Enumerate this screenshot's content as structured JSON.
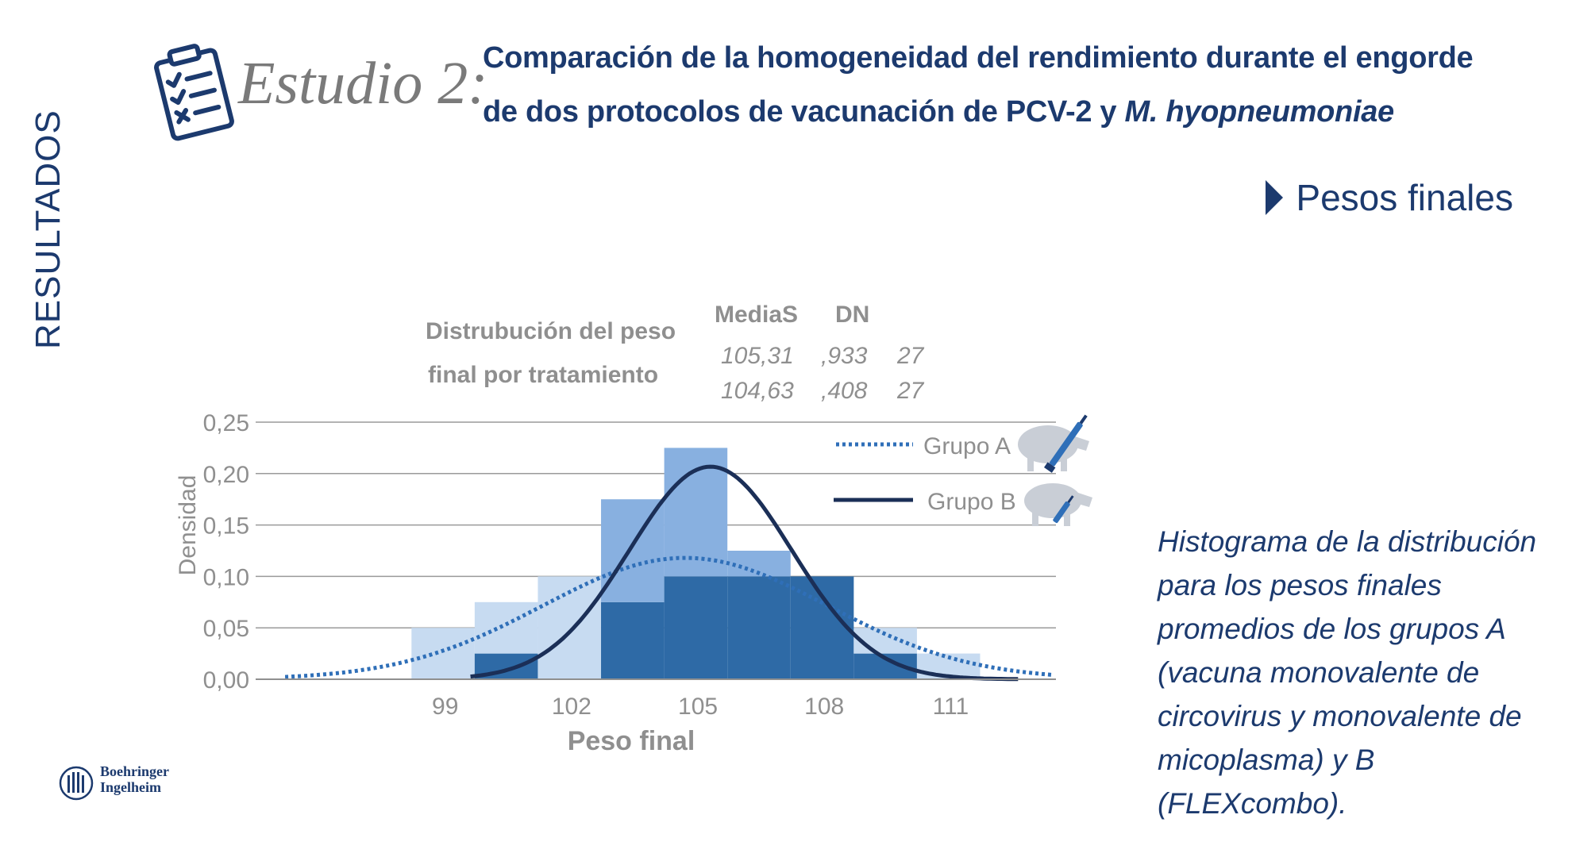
{
  "header": {
    "study_label": "Estudio 2:",
    "title_line1": "Comparación de la homogeneidad del rendimiento durante el engorde",
    "title_line2_plain": "de dos protocolos de vacunación de PCV-2 y ",
    "title_line2_italic": "M. hyopneumoniae"
  },
  "section_label": "RESULTADOS",
  "subsection_label": "Pesos finales",
  "caption": "Histograma de la distribución para los pesos finales promedios de los grupos A (vacuna monovalente de circovirus y monovalente de micoplasma) y B (FLEXcombo).",
  "logo": {
    "line1": "Boehringer",
    "line2": "Ingelheim"
  },
  "colors": {
    "navy": "#1c3a6e",
    "group_a": "#2f6fb8",
    "group_b": "#1b2f57",
    "bars_light": "#c7dbf1",
    "bars_mid": "#88b0e0",
    "bars_dark": "#2e6aa6",
    "gray_text": "#8f8f8f"
  },
  "icons": [
    "clipboard-checklist-icon",
    "pig-syringe-icon",
    "boehringer-logo-icon"
  ],
  "chart_data": {
    "type": "histogram",
    "title": "Distrubución del peso final por tratamiento",
    "xlabel": "Peso final",
    "ylabel": "Densidad",
    "xlim": [
      94.5,
      113.5
    ],
    "ylim": [
      0,
      0.25
    ],
    "x_ticks": [
      "99",
      "102",
      "105",
      "108",
      "111"
    ],
    "y_ticks": [
      "0,00",
      "0,05",
      "0,10",
      "0,15",
      "0,20",
      "0,25"
    ],
    "grid": true,
    "legend_position": "top-right",
    "stats_table": {
      "headers": [
        "MediaS",
        "DN",
        ""
      ],
      "rows": [
        [
          "105,31",
          ",933",
          "27"
        ],
        [
          "104,63",
          ",408",
          "27"
        ]
      ]
    },
    "series": [
      {
        "name": "Grupo A",
        "line_style": "dotted",
        "mean": 104.7,
        "sd": 3.38,
        "bins": [
          {
            "x0": 98.2,
            "x1": 99.7,
            "density": 0.05
          },
          {
            "x0": 99.7,
            "x1": 101.2,
            "density": 0.075
          },
          {
            "x0": 101.2,
            "x1": 102.7,
            "density": 0.1
          },
          {
            "x0": 102.7,
            "x1": 104.2,
            "density": 0.075
          },
          {
            "x0": 104.2,
            "x1": 105.7,
            "density": 0.1
          },
          {
            "x0": 105.7,
            "x1": 107.2,
            "density": 0.1
          },
          {
            "x0": 107.2,
            "x1": 108.7,
            "density": 0.1
          },
          {
            "x0": 108.7,
            "x1": 110.2,
            "density": 0.05
          },
          {
            "x0": 110.2,
            "x1": 111.7,
            "density": 0.025
          }
        ]
      },
      {
        "name": "Grupo B",
        "line_style": "solid",
        "mean": 105.3,
        "sd": 1.93,
        "bins": [
          {
            "x0": 99.7,
            "x1": 101.2,
            "density": 0.025
          },
          {
            "x0": 102.7,
            "x1": 104.2,
            "density": 0.175
          },
          {
            "x0": 104.2,
            "x1": 105.7,
            "density": 0.225
          },
          {
            "x0": 105.7,
            "x1": 107.2,
            "density": 0.125
          },
          {
            "x0": 107.2,
            "x1": 108.7,
            "density": 0.1
          },
          {
            "x0": 108.7,
            "x1": 110.2,
            "density": 0.025
          }
        ]
      }
    ]
  }
}
